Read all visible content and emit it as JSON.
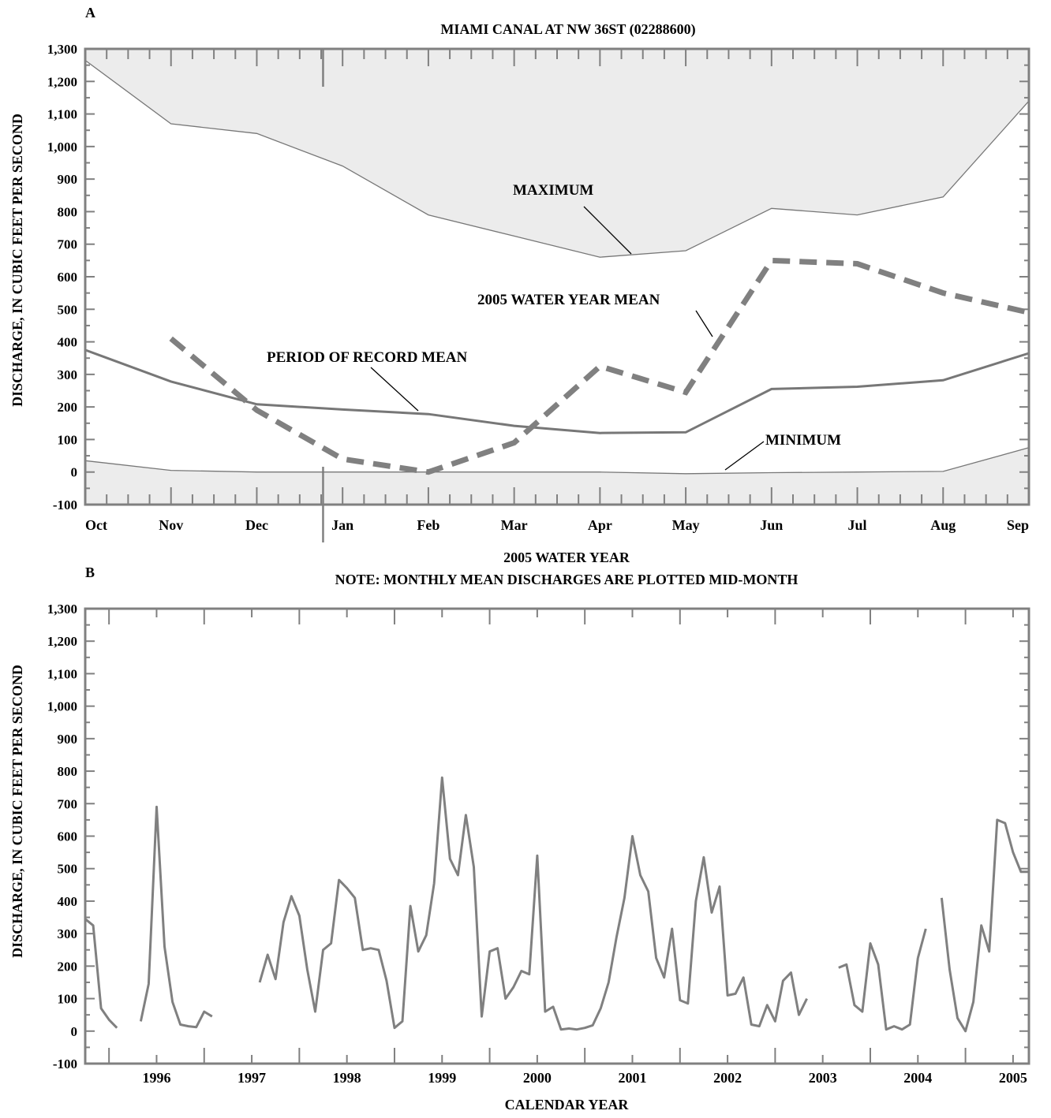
{
  "chart_data": [
    {
      "type": "line",
      "panel_letter": "A",
      "title": "MIAMI CANAL AT NW 36ST (02288600)",
      "xlabel": "2005 WATER YEAR",
      "xlabel_note": "NOTE: MONTHLY MEAN DISCHARGES ARE PLOTTED MID-MONTH",
      "ylabel": "DISCHARGE, IN CUBIC FEET PER SECOND",
      "ylim": [
        -100,
        1300
      ],
      "yticks": [
        "-100",
        "0",
        "100",
        "200",
        "300",
        "400",
        "500",
        "600",
        "700",
        "800",
        "900",
        "1,000",
        "1,100",
        "1,200",
        "1,300"
      ],
      "months": [
        "Oct",
        "Nov",
        "Dec",
        "Jan",
        "Feb",
        "Mar",
        "Apr",
        "May",
        "Jun",
        "Jul",
        "Aug",
        "Sep"
      ],
      "grid": false,
      "shaded_range": {
        "from": "MINIMUM",
        "to": "MAXIMUM",
        "color": "#ececec"
      },
      "series": [
        {
          "name": "MAXIMUM",
          "x": [
            0,
            1,
            2,
            3,
            4,
            5,
            6,
            7,
            8,
            9,
            10,
            11
          ],
          "values": [
            1265,
            1070,
            1040,
            940,
            790,
            725,
            660,
            680,
            810,
            790,
            845,
            1140
          ],
          "style": "thin",
          "color": "#777777"
        },
        {
          "name": "MINIMUM",
          "x": [
            0,
            1,
            2,
            3,
            4,
            5,
            6,
            7,
            8,
            9,
            10,
            11
          ],
          "values": [
            35,
            5,
            0,
            0,
            0,
            0,
            0,
            -5,
            -2,
            0,
            2,
            75
          ],
          "style": "thin",
          "color": "#777777"
        },
        {
          "name": "PERIOD OF RECORD MEAN",
          "x": [
            0,
            1,
            2,
            3,
            4,
            5,
            6,
            7,
            8,
            9,
            10,
            11
          ],
          "values": [
            375,
            278,
            208,
            192,
            178,
            142,
            120,
            122,
            255,
            262,
            282,
            365
          ],
          "style": "solid",
          "color": "#777777"
        },
        {
          "name": "2005 WATER YEAR MEAN",
          "x": [
            1,
            2,
            3,
            4,
            5,
            6,
            7,
            8,
            9,
            10,
            11
          ],
          "values": [
            410,
            190,
            40,
            0,
            90,
            325,
            245,
            650,
            640,
            550,
            490
          ],
          "style": "dashed",
          "color": "#808080"
        }
      ],
      "annotations": [
        {
          "text": "MAXIMUM",
          "series": "MAXIMUM"
        },
        {
          "text": "2005 WATER YEAR MEAN",
          "series": "2005 WATER YEAR MEAN"
        },
        {
          "text": "PERIOD OF RECORD MEAN",
          "series": "PERIOD OF RECORD MEAN"
        },
        {
          "text": "MINIMUM",
          "series": "MINIMUM"
        }
      ]
    },
    {
      "type": "line",
      "panel_letter": "B",
      "xlabel": "CALENDAR YEAR",
      "ylabel": "DISCHARGE, IN CUBIC FEET PER SECOND",
      "ylim": [
        -100,
        1300
      ],
      "yticks": [
        "-100",
        "0",
        "100",
        "200",
        "300",
        "400",
        "500",
        "600",
        "700",
        "800",
        "900",
        "1,000",
        "1,100",
        "1,200",
        "1,300"
      ],
      "year_labels": [
        "1996",
        "1997",
        "1998",
        "1999",
        "2000",
        "2001",
        "2002",
        "2003",
        "2004",
        "2005"
      ],
      "x_start": "1995-10",
      "x_end": "2005-09",
      "grid": false,
      "series": [
        {
          "name": "",
          "color": "#808080",
          "segments": [
            {
              "x": [
                "1995-10",
                "1995-11",
                "1995-12",
                "1996-01",
                "1996-02"
              ],
              "values": [
                345,
                325,
                70,
                35,
                10
              ]
            },
            {
              "x": [
                "1996-05",
                "1996-06",
                "1996-07",
                "1996-08",
                "1996-09",
                "1996-10",
                "1996-11",
                "1996-12",
                "1997-01",
                "1997-02"
              ],
              "values": [
                30,
                145,
                690,
                260,
                90,
                20,
                15,
                12,
                60,
                45
              ]
            },
            {
              "x": [
                "1997-08",
                "1997-09",
                "1997-10",
                "1997-11",
                "1997-12",
                "1998-01",
                "1998-02",
                "1998-03",
                "1998-04",
                "1998-05",
                "1998-06",
                "1998-07",
                "1998-08",
                "1998-09",
                "1998-10",
                "1998-11",
                "1998-12",
                "1999-01",
                "1999-02",
                "1999-03",
                "1999-04",
                "1999-05",
                "1999-06",
                "1999-07",
                "1999-08",
                "1999-09",
                "1999-10",
                "1999-11",
                "1999-12",
                "2000-01",
                "2000-02",
                "2000-03",
                "2000-04",
                "2000-05",
                "2000-06",
                "2000-07",
                "2000-08",
                "2000-09",
                "2000-10",
                "2000-11",
                "2000-12",
                "2001-01",
                "2001-02",
                "2001-03",
                "2001-04",
                "2001-05",
                "2001-06",
                "2001-07",
                "2001-08",
                "2001-09",
                "2001-10",
                "2001-11",
                "2001-12",
                "2002-01",
                "2002-02",
                "2002-03",
                "2002-04",
                "2002-05",
                "2002-06",
                "2002-07",
                "2002-08",
                "2002-09",
                "2002-10",
                "2002-11",
                "2002-12",
                "2003-01",
                "2003-02",
                "2003-03",
                "2003-04",
                "2003-05"
              ],
              "values": [
                150,
                235,
                160,
                335,
                415,
                355,
                190,
                60,
                250,
                270,
                465,
                440,
                410,
                250,
                255,
                250,
                155,
                10,
                30,
                385,
                245,
                295,
                455,
                780,
                530,
                480,
                665,
                505,
                45,
                245,
                255,
                100,
                135,
                185,
                175,
                540,
                60,
                75,
                5,
                8,
                5,
                10,
                18,
                70,
                150,
                290,
                410,
                600,
                480,
                430,
                225,
                165,
                315,
                95,
                85,
                400,
                535,
                365,
                445,
                110,
                115,
                165,
                20,
                15,
                80,
                30,
                155,
                180,
                50,
                100
              ]
            },
            {
              "x": [
                "2003-09",
                "2003-10",
                "2003-11",
                "2003-12",
                "2004-01",
                "2004-02",
                "2004-03",
                "2004-04",
                "2004-05",
                "2004-06",
                "2004-07"
              ],
              "values": [
                195,
                205,
                80,
                60,
                270,
                205,
                5,
                15,
                5,
                20,
                225
              ]
            },
            {
              "x": [
                "2004-07",
                "2004-08"
              ],
              "values": [
                225,
                315
              ]
            },
            {
              "x": [
                "2004-10",
                "2004-11",
                "2004-12",
                "2005-01",
                "2005-02",
                "2005-03",
                "2005-04",
                "2005-05",
                "2005-06",
                "2005-07",
                "2005-08",
                "2005-09"
              ],
              "values": [
                410,
                190,
                40,
                0,
                90,
                325,
                245,
                650,
                640,
                550,
                490,
                490
              ]
            }
          ]
        }
      ]
    }
  ]
}
